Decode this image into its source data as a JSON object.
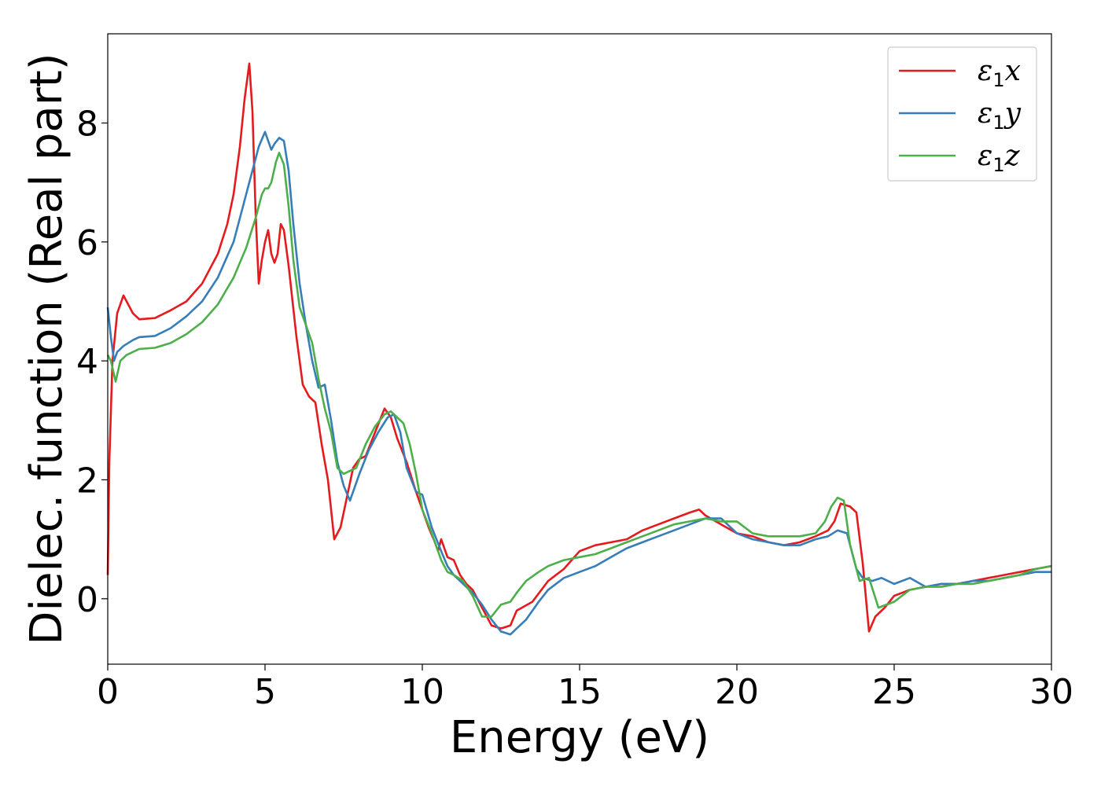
{
  "chart_data": {
    "type": "line",
    "xlabel": "Energy (eV)",
    "ylabel": "Dielec. function (Real part)",
    "xlim": [
      0,
      30
    ],
    "ylim": [
      -1.1,
      9.5
    ],
    "xticks": [
      0,
      5,
      10,
      15,
      20,
      25,
      30
    ],
    "xtick_labels": [
      "0",
      "5",
      "10",
      "15",
      "20",
      "25",
      "30"
    ],
    "yticks": [
      0,
      2,
      4,
      6,
      8
    ],
    "ytick_labels": [
      "0",
      "2",
      "4",
      "6",
      "8"
    ],
    "grid": false,
    "legend_position": "top-right",
    "series": [
      {
        "name_main": "ε",
        "name_sub": "1",
        "name_tail": "x",
        "color": "#e41a1c",
        "x": [
          0,
          0.05,
          0.15,
          0.3,
          0.5,
          0.8,
          1.0,
          1.5,
          2.0,
          2.5,
          3.0,
          3.5,
          3.8,
          4.0,
          4.2,
          4.35,
          4.5,
          4.6,
          4.7,
          4.8,
          4.9,
          5.0,
          5.1,
          5.2,
          5.3,
          5.4,
          5.5,
          5.6,
          5.75,
          6.0,
          6.2,
          6.4,
          6.6,
          6.8,
          7.0,
          7.2,
          7.4,
          7.6,
          7.8,
          8.0,
          8.2,
          8.5,
          8.8,
          9.0,
          9.2,
          9.5,
          9.8,
          10.0,
          10.2,
          10.4,
          10.5,
          10.6,
          10.8,
          11.0,
          11.2,
          11.4,
          11.6,
          11.8,
          12.0,
          12.2,
          12.5,
          12.8,
          13.0,
          13.5,
          14.0,
          14.5,
          15.0,
          15.5,
          16.0,
          16.5,
          17.0,
          17.5,
          18.0,
          18.5,
          18.8,
          19.0,
          19.5,
          20.0,
          20.5,
          21.0,
          21.5,
          22.0,
          22.5,
          22.9,
          23.1,
          23.3,
          23.6,
          23.8,
          24.0,
          24.2,
          24.4,
          24.7,
          25.0,
          25.5,
          26.0,
          26.5,
          27.0,
          27.5,
          28.0,
          28.5,
          29.0,
          29.5,
          30.0
        ],
        "y": [
          0.4,
          2.3,
          4.0,
          4.8,
          5.1,
          4.8,
          4.7,
          4.72,
          4.85,
          5.0,
          5.3,
          5.8,
          6.3,
          6.8,
          7.6,
          8.4,
          9.0,
          8.2,
          6.5,
          5.3,
          5.7,
          6.0,
          6.2,
          5.8,
          5.65,
          5.8,
          6.3,
          6.2,
          5.6,
          4.4,
          3.6,
          3.4,
          3.3,
          2.6,
          2.0,
          1.0,
          1.2,
          1.7,
          2.2,
          2.35,
          2.4,
          2.8,
          3.2,
          3.05,
          2.7,
          2.3,
          1.8,
          1.5,
          1.2,
          0.95,
          0.8,
          1.0,
          0.7,
          0.65,
          0.4,
          0.25,
          0.15,
          -0.05,
          -0.25,
          -0.45,
          -0.5,
          -0.45,
          -0.2,
          -0.05,
          0.3,
          0.5,
          0.8,
          0.9,
          0.95,
          1.0,
          1.15,
          1.25,
          1.35,
          1.45,
          1.5,
          1.4,
          1.25,
          1.1,
          1.05,
          0.95,
          0.9,
          0.95,
          1.05,
          1.15,
          1.3,
          1.6,
          1.55,
          1.45,
          0.6,
          -0.55,
          -0.3,
          -0.15,
          0.05,
          0.15,
          0.2,
          0.25,
          0.25,
          0.3,
          0.35,
          0.4,
          0.45,
          0.5,
          0.55
        ]
      },
      {
        "name_main": "ε",
        "name_sub": "1",
        "name_tail": "y",
        "color": "#377eb8",
        "x": [
          0,
          0.1,
          0.2,
          0.3,
          0.5,
          0.8,
          1.0,
          1.5,
          2.0,
          2.5,
          3.0,
          3.5,
          4.0,
          4.3,
          4.6,
          4.8,
          5.0,
          5.1,
          5.2,
          5.3,
          5.45,
          5.6,
          5.75,
          5.9,
          6.1,
          6.3,
          6.5,
          6.7,
          6.9,
          7.1,
          7.3,
          7.5,
          7.7,
          8.0,
          8.3,
          8.6,
          8.9,
          9.1,
          9.3,
          9.5,
          9.8,
          10.0,
          10.3,
          10.6,
          10.8,
          11.0,
          11.3,
          11.6,
          11.9,
          12.2,
          12.5,
          12.8,
          13.0,
          13.3,
          13.7,
          14.0,
          14.5,
          15.0,
          15.5,
          16.0,
          16.5,
          17.0,
          17.5,
          18.0,
          18.5,
          19.0,
          19.5,
          20.0,
          20.5,
          21.0,
          21.5,
          22.0,
          22.5,
          22.9,
          23.2,
          23.5,
          23.8,
          24.0,
          24.3,
          24.6,
          25.0,
          25.5,
          26.0,
          26.5,
          27.0,
          27.5,
          28.0,
          28.5,
          29.0,
          29.5,
          30.0
        ],
        "y": [
          4.9,
          4.4,
          4.0,
          4.15,
          4.25,
          4.35,
          4.4,
          4.42,
          4.55,
          4.75,
          5.0,
          5.4,
          6.0,
          6.6,
          7.2,
          7.6,
          7.85,
          7.7,
          7.55,
          7.65,
          7.75,
          7.7,
          7.2,
          6.3,
          5.3,
          4.6,
          4.0,
          3.55,
          3.6,
          3.0,
          2.3,
          1.9,
          1.65,
          2.1,
          2.5,
          2.8,
          3.05,
          3.1,
          2.8,
          2.2,
          1.8,
          1.75,
          1.2,
          0.8,
          0.55,
          0.4,
          0.25,
          0.1,
          -0.1,
          -0.35,
          -0.55,
          -0.6,
          -0.5,
          -0.35,
          -0.05,
          0.15,
          0.35,
          0.45,
          0.55,
          0.7,
          0.85,
          0.95,
          1.05,
          1.15,
          1.25,
          1.35,
          1.35,
          1.1,
          1.0,
          0.95,
          0.9,
          0.9,
          1.0,
          1.05,
          1.15,
          1.1,
          0.5,
          0.35,
          0.3,
          0.35,
          0.25,
          0.35,
          0.2,
          0.25,
          0.25,
          0.3,
          0.3,
          0.35,
          0.4,
          0.45,
          0.45
        ]
      },
      {
        "name_main": "ε",
        "name_sub": "1",
        "name_tail": "z",
        "color": "#4daf4a",
        "x": [
          0,
          0.1,
          0.25,
          0.4,
          0.6,
          0.8,
          1.0,
          1.5,
          2.0,
          2.5,
          3.0,
          3.5,
          4.0,
          4.4,
          4.7,
          4.9,
          5.0,
          5.1,
          5.2,
          5.35,
          5.45,
          5.6,
          5.75,
          5.9,
          6.1,
          6.3,
          6.5,
          6.7,
          6.9,
          7.1,
          7.3,
          7.5,
          7.7,
          7.9,
          8.2,
          8.5,
          8.8,
          9.0,
          9.2,
          9.4,
          9.6,
          9.8,
          10.0,
          10.3,
          10.6,
          10.8,
          11.0,
          11.3,
          11.6,
          11.9,
          12.2,
          12.5,
          12.8,
          13.0,
          13.3,
          13.7,
          14.0,
          14.5,
          15.0,
          15.5,
          16.0,
          16.5,
          17.0,
          17.5,
          18.0,
          18.5,
          19.0,
          19.5,
          20.0,
          20.5,
          21.0,
          21.5,
          22.0,
          22.5,
          22.8,
          23.0,
          23.2,
          23.4,
          23.6,
          23.9,
          24.2,
          24.5,
          25.0,
          25.5,
          26.0,
          26.5,
          27.0,
          27.5,
          28.0,
          28.5,
          29.0,
          29.5,
          30.0
        ],
        "y": [
          4.1,
          4.0,
          3.65,
          4.0,
          4.1,
          4.15,
          4.2,
          4.22,
          4.3,
          4.45,
          4.65,
          4.95,
          5.4,
          5.9,
          6.4,
          6.8,
          6.9,
          6.9,
          7.0,
          7.35,
          7.5,
          7.3,
          6.6,
          5.7,
          4.9,
          4.6,
          4.3,
          3.7,
          3.2,
          2.8,
          2.2,
          2.1,
          2.15,
          2.2,
          2.6,
          2.9,
          3.1,
          3.15,
          3.05,
          2.95,
          2.6,
          2.1,
          1.5,
          1.1,
          0.65,
          0.45,
          0.4,
          0.3,
          0.05,
          -0.3,
          -0.3,
          -0.1,
          -0.05,
          0.1,
          0.3,
          0.45,
          0.55,
          0.65,
          0.7,
          0.75,
          0.85,
          0.95,
          1.05,
          1.15,
          1.25,
          1.3,
          1.35,
          1.3,
          1.3,
          1.1,
          1.05,
          1.05,
          1.05,
          1.1,
          1.3,
          1.55,
          1.7,
          1.65,
          0.9,
          0.3,
          0.35,
          -0.15,
          -0.05,
          0.15,
          0.2,
          0.2,
          0.25,
          0.25,
          0.3,
          0.35,
          0.4,
          0.5,
          0.55
        ]
      }
    ]
  }
}
